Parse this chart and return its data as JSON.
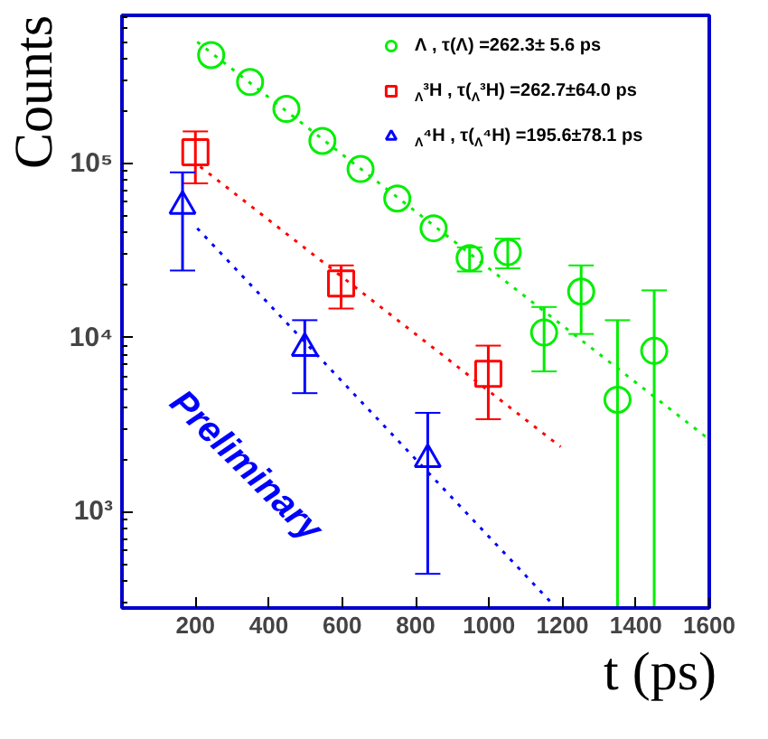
{
  "chart_data": {
    "type": "scatter",
    "xlabel": "t (ps)",
    "ylabel": "Counts",
    "log": "y",
    "grid": false,
    "legend": "top right",
    "xlim": [
      0,
      1600
    ],
    "xticks": [
      200,
      400,
      600,
      800,
      1000,
      1200,
      1400,
      1600
    ],
    "ylim": [
      280,
      710000
    ],
    "yticks": [
      {
        "value": 1000,
        "label": "10³"
      },
      {
        "value": 10000,
        "label": "10⁴"
      },
      {
        "value": 100000,
        "label": "10⁵"
      }
    ],
    "annotations": [
      "Preliminary"
    ],
    "series": [
      {
        "name": "Λ ,   τ(Λ) =262.3± 5.6 ps",
        "marker": "circle",
        "color": "#00ee00",
        "x": [
          243,
          349,
          448,
          546,
          650,
          750,
          849,
          947,
          1051,
          1150,
          1251,
          1350,
          1450
        ],
        "values": [
          420000,
          294000,
          206000,
          135000,
          93000,
          63000,
          42500,
          28600,
          31000,
          10700,
          18400,
          4400,
          8400
        ],
        "errors": [
          null,
          null,
          null,
          null,
          null,
          null,
          null,
          [
            24000,
            33000
          ],
          [
            25000,
            37000
          ],
          [
            6400,
            15000
          ],
          [
            10500,
            26000
          ],
          [
            280,
            12600
          ],
          [
            280,
            18700
          ]
        ]
      },
      {
        "name": "$_{Λ}$³H , τ($_{Λ}$³H) =262.7±64.0 ps",
        "marker": "square",
        "color": "#ff0000",
        "x": [
          200,
          597,
          998
        ],
        "values": [
          116000,
          20500,
          6200
        ],
        "errors": [
          [
            77000,
            153000
          ],
          [
            14700,
            26000
          ],
          [
            3400,
            9000
          ]
        ]
      },
      {
        "name": "$_{Λ}$⁴H , τ($_{Λ}$⁴H) =195.6±78.1 ps",
        "marker": "triangle",
        "color": "#0000ff",
        "x": [
          165,
          498,
          833
        ],
        "values": [
          57000,
          8700,
          2000
        ],
        "errors": [
          [
            24300,
            89000
          ],
          [
            4800,
            12600
          ],
          [
            440,
            3700
          ]
        ]
      },
      {
        "type": "line",
        "line_style": "dotted",
        "color": "#00ee00",
        "x": [
          205,
          1600
        ],
        "values": [
          500000,
          2600
        ]
      },
      {
        "type": "line",
        "line_style": "dotted",
        "color": "#ff0000",
        "x": [
          213,
          1195
        ],
        "values": [
          96000,
          2360
        ]
      },
      {
        "type": "line",
        "line_style": "dotted",
        "color": "#0000ff",
        "x": [
          205,
          1170
        ],
        "values": [
          42500,
          300
        ]
      }
    ]
  }
}
